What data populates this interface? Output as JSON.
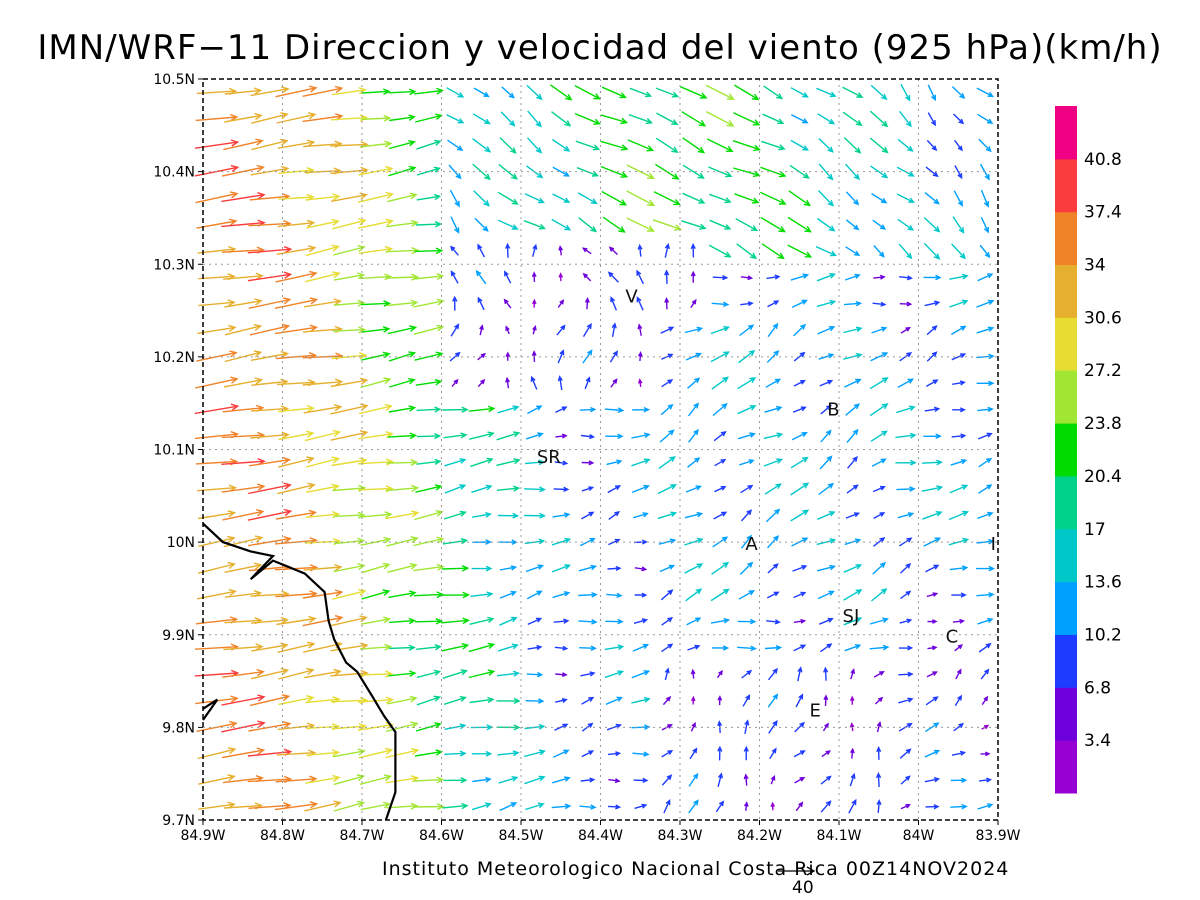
{
  "title": "IMN/WRF−11 Direccion y velocidad del viento (925 hPa)(km/h)",
  "footer": "Instituto Meteorologico Nacional Costa Rica  00Z14NOV2024",
  "reference_vector": {
    "value": "40"
  },
  "map": {
    "lon_range": [
      -84.9,
      -83.9
    ],
    "lat_range": [
      9.7,
      10.5
    ],
    "lon_ticks": [
      {
        "v": -84.9,
        "label": "84.9W"
      },
      {
        "v": -84.8,
        "label": "84.8W"
      },
      {
        "v": -84.7,
        "label": "84.7W"
      },
      {
        "v": -84.6,
        "label": "84.6W"
      },
      {
        "v": -84.5,
        "label": "84.5W"
      },
      {
        "v": -84.4,
        "label": "84.4W"
      },
      {
        "v": -84.3,
        "label": "84.3W"
      },
      {
        "v": -84.2,
        "label": "84.2W"
      },
      {
        "v": -84.1,
        "label": "84.1W"
      },
      {
        "v": -84.0,
        "label": "84W"
      },
      {
        "v": -83.9,
        "label": "83.9W"
      }
    ],
    "lat_ticks": [
      {
        "v": 9.7,
        "label": "9.7N"
      },
      {
        "v": 9.8,
        "label": "9.8N"
      },
      {
        "v": 9.9,
        "label": "9.9N"
      },
      {
        "v": 10.0,
        "label": "10N"
      },
      {
        "v": 10.1,
        "label": "10.1N"
      },
      {
        "v": 10.2,
        "label": "10.2N"
      },
      {
        "v": 10.3,
        "label": "10.3N"
      },
      {
        "v": 10.4,
        "label": "10.4N"
      },
      {
        "v": 10.5,
        "label": "10.5N"
      }
    ],
    "grid": true,
    "stations": [
      {
        "label": "V",
        "lon": -84.361,
        "lat": 10.265
      },
      {
        "label": "B",
        "lon": -84.107,
        "lat": 10.143
      },
      {
        "label": "SR",
        "lon": -84.465,
        "lat": 10.092
      },
      {
        "label": "A",
        "lon": -84.21,
        "lat": 9.998
      },
      {
        "label": "I",
        "lon": -83.906,
        "lat": 9.998
      },
      {
        "label": "SJ",
        "lon": -84.085,
        "lat": 9.92
      },
      {
        "label": "C",
        "lon": -83.958,
        "lat": 9.898
      },
      {
        "label": "E",
        "lon": -84.13,
        "lat": 9.818
      }
    ],
    "coastline": [
      [
        -84.9,
        10.02
      ],
      [
        -84.875,
        10.0
      ],
      [
        -84.84,
        9.99
      ],
      [
        -84.812,
        9.985
      ],
      [
        -84.84,
        9.96
      ],
      [
        -84.812,
        9.98
      ],
      [
        -84.772,
        9.966
      ],
      [
        -84.747,
        9.946
      ],
      [
        -84.742,
        9.915
      ],
      [
        -84.735,
        9.895
      ],
      [
        -84.72,
        9.87
      ],
      [
        -84.706,
        9.86
      ],
      [
        -84.688,
        9.835
      ],
      [
        -84.672,
        9.812
      ],
      [
        -84.658,
        9.795
      ],
      [
        -84.658,
        9.73
      ],
      [
        -84.67,
        9.7
      ]
    ],
    "coastline2": [
      [
        -84.9,
        9.808
      ],
      [
        -84.882,
        9.83
      ],
      [
        -84.9,
        9.82
      ]
    ]
  },
  "colorbar": {
    "levels": [
      "3.4",
      "6.8",
      "10.2",
      "13.6",
      "17",
      "20.4",
      "23.8",
      "27.2",
      "30.6",
      "34",
      "37.4",
      "40.8"
    ],
    "colors": [
      "#9600d2",
      "#6e00dc",
      "#1e3cff",
      "#00a0ff",
      "#00c8c8",
      "#00d28c",
      "#00dc00",
      "#a0e632",
      "#e6dc32",
      "#e6af2d",
      "#f08228",
      "#fa3c3c",
      "#f00082"
    ]
  }
}
